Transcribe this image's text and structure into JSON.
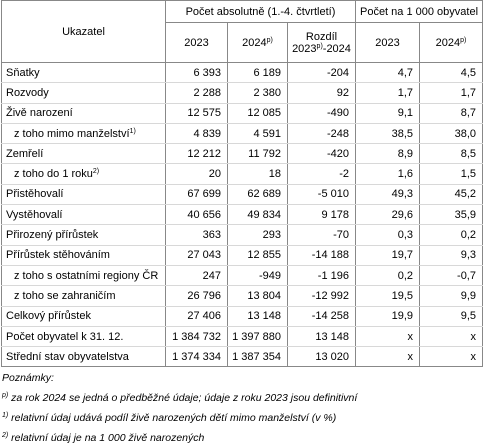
{
  "header": {
    "label": "Ukazatel",
    "group1": "Počet absolutně (1.-4. čtvrtletí)",
    "group2": "Počet na 1 000 obyvatel",
    "columns": [
      {
        "text": "2023"
      },
      {
        "text": "2024",
        "sup": "p)"
      },
      {
        "text": "Rozdíl",
        "text2": "2023",
        "sup": "p)",
        "text3": "-2024"
      },
      {
        "text": "2023"
      },
      {
        "text": "2024",
        "sup": "p)"
      }
    ]
  },
  "table": {
    "rows": [
      {
        "label": "Sňatky",
        "values": [
          "6 393",
          "6 189",
          "-204",
          "4,7",
          "4,5"
        ]
      },
      {
        "label": "Rozvody",
        "values": [
          "2 288",
          "2 380",
          "92",
          "1,7",
          "1,7"
        ]
      },
      {
        "label": "Živě narození",
        "values": [
          "12 575",
          "12 085",
          "-490",
          "9,1",
          "8,7"
        ]
      },
      {
        "label": "z toho mimo manželství",
        "sup": "1)",
        "values": [
          "4 839",
          "4 591",
          "-248",
          "38,5",
          "38,0"
        ]
      },
      {
        "label": "Zemřelí",
        "values": [
          "12 212",
          "11 792",
          "-420",
          "8,9",
          "8,5"
        ]
      },
      {
        "label": "z toho do 1 roku",
        "sup": "2)",
        "values": [
          "20",
          "18",
          "-2",
          "1,6",
          "1,5"
        ]
      },
      {
        "label": "Přistěhovalí",
        "values": [
          "67 699",
          "62 689",
          "-5 010",
          "49,3",
          "45,2"
        ]
      },
      {
        "label": "Vystěhovalí",
        "values": [
          "40 656",
          "49 834",
          "9 178",
          "29,6",
          "35,9"
        ]
      },
      {
        "label": "Přirozený přírůstek",
        "values": [
          "363",
          "293",
          "-70",
          "0,3",
          "0,2"
        ]
      },
      {
        "label": "Přírůstek stěhováním",
        "values": [
          "27 043",
          "12 855",
          "-14 188",
          "19,7",
          "9,3"
        ]
      },
      {
        "label": "z toho s ostatními regiony ČR",
        "values": [
          "247",
          "-949",
          "-1 196",
          "0,2",
          "-0,7"
        ]
      },
      {
        "label": "z toho se zahraničím",
        "values": [
          "26 796",
          "13 804",
          "-12 992",
          "19,5",
          "9,9"
        ]
      },
      {
        "label": "Celkový přírůstek",
        "values": [
          "27 406",
          "13 148",
          "-14 258",
          "19,9",
          "9,5"
        ]
      },
      {
        "label": "Počet obyvatel k 31. 12.",
        "values": [
          "1 384 732",
          "1 397 880",
          "13 148",
          "x",
          "x"
        ]
      },
      {
        "label": "Střední stav obyvatelstva",
        "values": [
          "1 374 334",
          "1 387 354",
          "13 020",
          "x",
          "x"
        ]
      }
    ]
  },
  "notes": {
    "title": "Poznámky:",
    "items": [
      {
        "mark": "p)",
        "text": " za rok 2024 se jedná o předběžné údaje; údaje z roku 2023 jsou definitivní"
      },
      {
        "mark": "1)",
        "text": " relativní údaj udává podíl živě narozených dětí mimo manželství (v %)"
      },
      {
        "mark": "2)",
        "text": " relativní údaj je na 1 000 živě narozených"
      }
    ]
  }
}
